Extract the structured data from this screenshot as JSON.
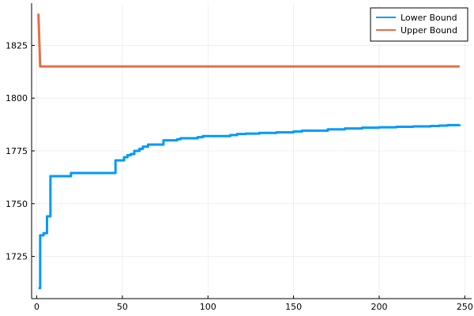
{
  "chart_data": {
    "type": "line",
    "title": "",
    "xlabel": "",
    "ylabel": "",
    "xlim": [
      -3,
      254
    ],
    "ylim": [
      1705,
      1845
    ],
    "xticks": [
      0,
      50,
      100,
      150,
      200,
      250
    ],
    "yticks": [
      1725,
      1750,
      1775,
      1800,
      1825
    ],
    "grid": true,
    "legend_position": "top-right",
    "series": [
      {
        "name": "Lower Bound",
        "color": "#009AFA",
        "step": true,
        "points": [
          [
            1,
            1710
          ],
          [
            2,
            1735
          ],
          [
            4,
            1736
          ],
          [
            6,
            1744
          ],
          [
            8,
            1763
          ],
          [
            20,
            1764.5
          ],
          [
            46,
            1770.5
          ],
          [
            51,
            1772
          ],
          [
            53,
            1773
          ],
          [
            55,
            1773.5
          ],
          [
            57,
            1775
          ],
          [
            60,
            1776
          ],
          [
            62,
            1777
          ],
          [
            65,
            1778
          ],
          [
            70,
            1778
          ],
          [
            74,
            1780
          ],
          [
            82,
            1780.5
          ],
          [
            84,
            1781
          ],
          [
            94,
            1781.5
          ],
          [
            97,
            1782
          ],
          [
            113,
            1782.5
          ],
          [
            117,
            1783
          ],
          [
            122,
            1783.2
          ],
          [
            130,
            1783.5
          ],
          [
            140,
            1783.8
          ],
          [
            150,
            1784.2
          ],
          [
            155,
            1784.6
          ],
          [
            170,
            1785.2
          ],
          [
            180,
            1785.6
          ],
          [
            190,
            1786
          ],
          [
            200,
            1786.2
          ],
          [
            210,
            1786.4
          ],
          [
            220,
            1786.6
          ],
          [
            230,
            1786.8
          ],
          [
            235,
            1787
          ],
          [
            240,
            1787.2
          ],
          [
            247,
            1787.5
          ]
        ]
      },
      {
        "name": "Upper Bound",
        "color": "#E26F46",
        "step": false,
        "points": [
          [
            1,
            1840
          ],
          [
            2,
            1815
          ],
          [
            247,
            1815
          ]
        ]
      }
    ]
  }
}
